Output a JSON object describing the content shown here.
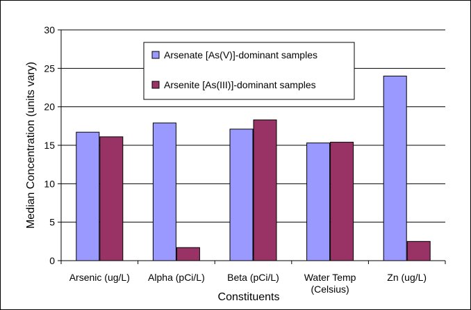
{
  "chart_data": {
    "type": "bar",
    "title": "",
    "xlabel": "Constituents",
    "ylabel": "Median Concentration (units vary)",
    "ylim": [
      0,
      30
    ],
    "yticks": [
      0,
      5,
      10,
      15,
      20,
      25,
      30
    ],
    "grid": "horizontal",
    "legend_position": "top-center",
    "categories": [
      [
        "Arsenic (ug/L)"
      ],
      [
        "Alpha (pCi/L)"
      ],
      [
        "Beta (pCi/L)"
      ],
      [
        "Water Temp",
        "(Celsius)"
      ],
      [
        "Zn (ug/L)"
      ]
    ],
    "series": [
      {
        "name": "Arsenate [As(V)]-dominant samples",
        "color": "#9999ff",
        "values": [
          16.7,
          17.9,
          17.1,
          15.3,
          24.0
        ]
      },
      {
        "name": "Arsenite [As(III)]-dominant samples",
        "color": "#993366",
        "values": [
          16.1,
          1.7,
          18.3,
          15.4,
          2.5
        ]
      }
    ]
  }
}
